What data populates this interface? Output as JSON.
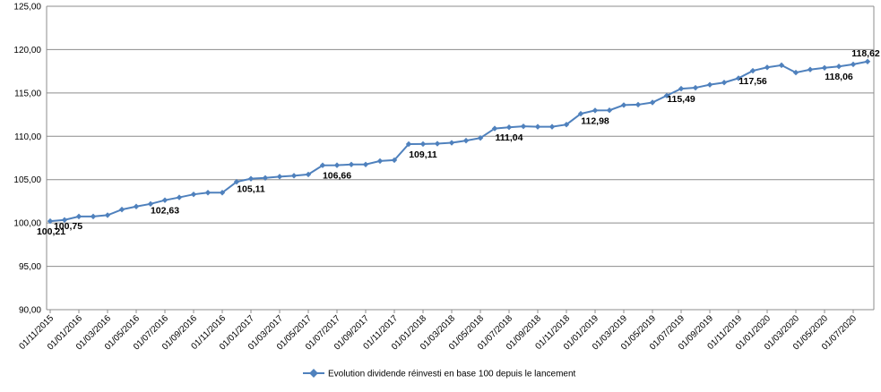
{
  "chart_data": {
    "type": "line",
    "title": "",
    "xlabel": "",
    "ylabel": "",
    "ylim": [
      90,
      125
    ],
    "y_ticks": [
      "90,00",
      "95,00",
      "100,00",
      "105,00",
      "110,00",
      "115,00",
      "120,00",
      "125,00"
    ],
    "x_tick_labels": [
      "01/11/2015",
      "01/01/2016",
      "01/03/2016",
      "01/05/2016",
      "01/07/2016",
      "01/09/2016",
      "01/11/2016",
      "01/01/2017",
      "01/03/2017",
      "01/05/2017",
      "01/07/2017",
      "01/09/2017",
      "01/11/2017",
      "01/01/2018",
      "01/03/2018",
      "01/05/2018",
      "01/07/2018",
      "01/09/2018",
      "01/11/2018",
      "01/01/2019",
      "01/03/2019",
      "01/05/2019",
      "01/07/2019",
      "01/09/2019",
      "01/11/2019",
      "01/01/2020",
      "01/03/2020",
      "01/05/2020",
      "01/07/2020"
    ],
    "grid": "horizontal",
    "legend_position": "bottom",
    "series_color": "#4f81bd",
    "series": [
      {
        "name": "Evolution dividende réinvesti en base 100 depuis le lancement",
        "values": [
          100.21,
          100.35,
          100.75,
          100.75,
          100.9,
          101.55,
          101.9,
          102.2,
          102.63,
          102.95,
          103.3,
          103.5,
          103.5,
          104.75,
          105.11,
          105.2,
          105.35,
          105.45,
          105.6,
          106.65,
          106.66,
          106.75,
          106.75,
          107.15,
          107.25,
          109.1,
          109.11,
          109.15,
          109.25,
          109.5,
          109.8,
          110.9,
          111.04,
          111.15,
          111.1,
          111.1,
          111.35,
          112.6,
          112.98,
          113.0,
          113.6,
          113.65,
          113.9,
          114.7,
          115.49,
          115.6,
          115.95,
          116.2,
          116.7,
          117.56,
          117.95,
          118.2,
          117.35,
          117.7,
          117.9,
          118.06,
          118.3,
          118.62
        ]
      }
    ],
    "data_labels": [
      {
        "index": 0,
        "text": "100,21"
      },
      {
        "index": 2,
        "text": "100,75"
      },
      {
        "index": 8,
        "text": "102,63"
      },
      {
        "index": 14,
        "text": "105,11"
      },
      {
        "index": 20,
        "text": "106,66"
      },
      {
        "index": 26,
        "text": "109,11"
      },
      {
        "index": 32,
        "text": "111,04"
      },
      {
        "index": 38,
        "text": "112,98"
      },
      {
        "index": 44,
        "text": "115,49"
      },
      {
        "index": 49,
        "text": "117,56"
      },
      {
        "index": 55,
        "text": "118,06"
      },
      {
        "index": 57,
        "text": "118,62"
      }
    ]
  }
}
